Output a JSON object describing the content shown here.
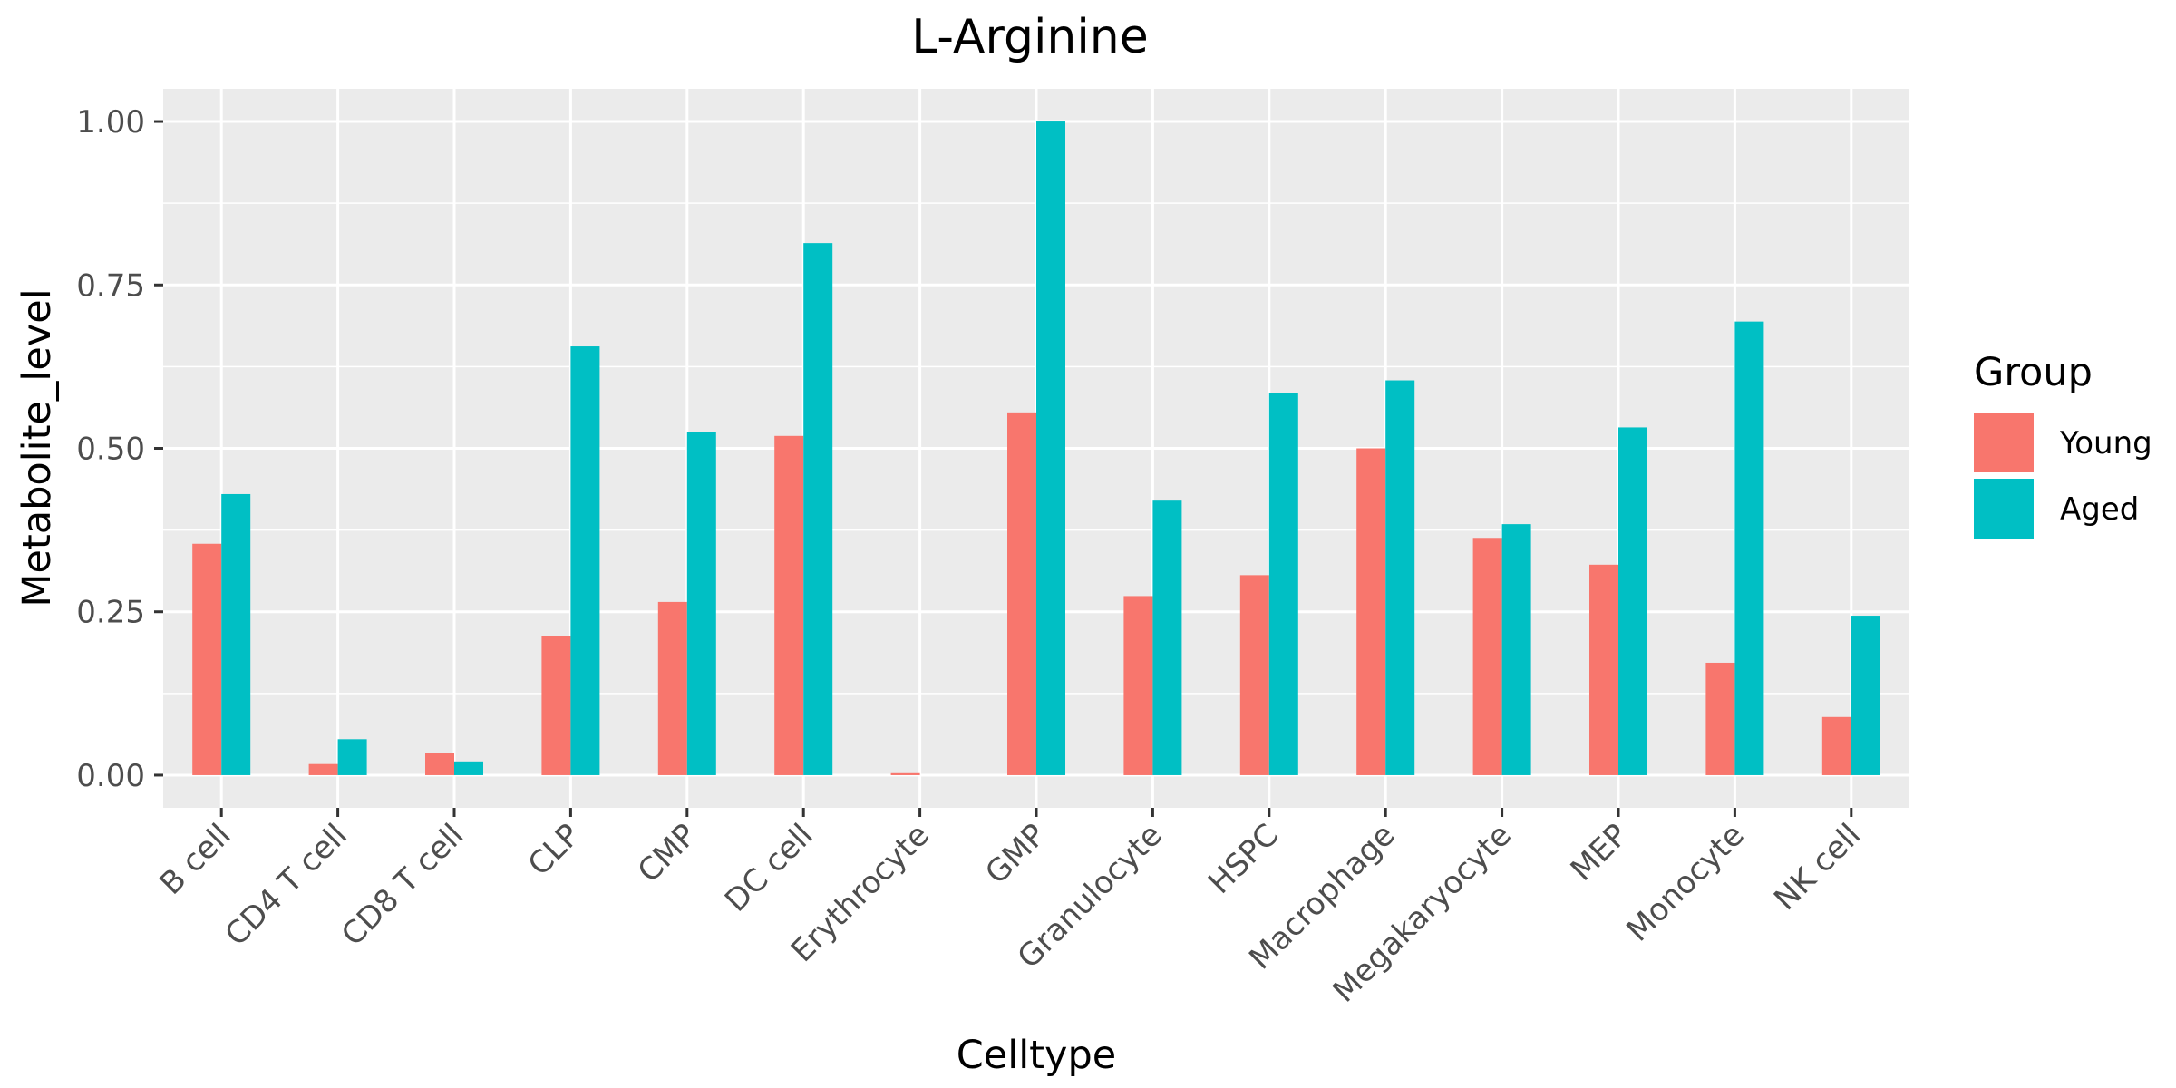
{
  "chart_data": {
    "type": "bar",
    "title": "L-Arginine",
    "xlabel": "Celltype",
    "ylabel": "Metabolite_level",
    "ylim": [
      -0.05,
      1.05
    ],
    "yticks": [
      "0.00",
      "0.25",
      "0.50",
      "0.75",
      "1.00"
    ],
    "ytick_values": [
      0,
      0.25,
      0.5,
      0.75,
      1.0
    ],
    "grid": true,
    "legend_title": "Group",
    "legend_position": "right",
    "categories": [
      "B cell",
      "CD4 T cell",
      "CD8 T cell",
      "CLP",
      "CMP",
      "DC cell",
      "Erythrocyte",
      "GMP",
      "Granulocyte",
      "HSPC",
      "Macrophage",
      "Megakaryocyte",
      "MEP",
      "Monocyte",
      "NK cell"
    ],
    "series": [
      {
        "name": "Young",
        "color": "#F8766D",
        "values": [
          0.354,
          0.017,
          0.034,
          0.213,
          0.265,
          0.519,
          0.003,
          0.555,
          0.274,
          0.306,
          0.5,
          0.363,
          0.322,
          0.172,
          0.089
        ]
      },
      {
        "name": "Aged",
        "color": "#00BFC4",
        "values": [
          0.43,
          0.055,
          0.021,
          0.656,
          0.525,
          0.814,
          0.0,
          1.0,
          0.42,
          0.584,
          0.604,
          0.384,
          0.532,
          0.694,
          0.244
        ]
      }
    ],
    "panel_background": "#EBEBEB",
    "grid_color": "#FFFFFF"
  }
}
